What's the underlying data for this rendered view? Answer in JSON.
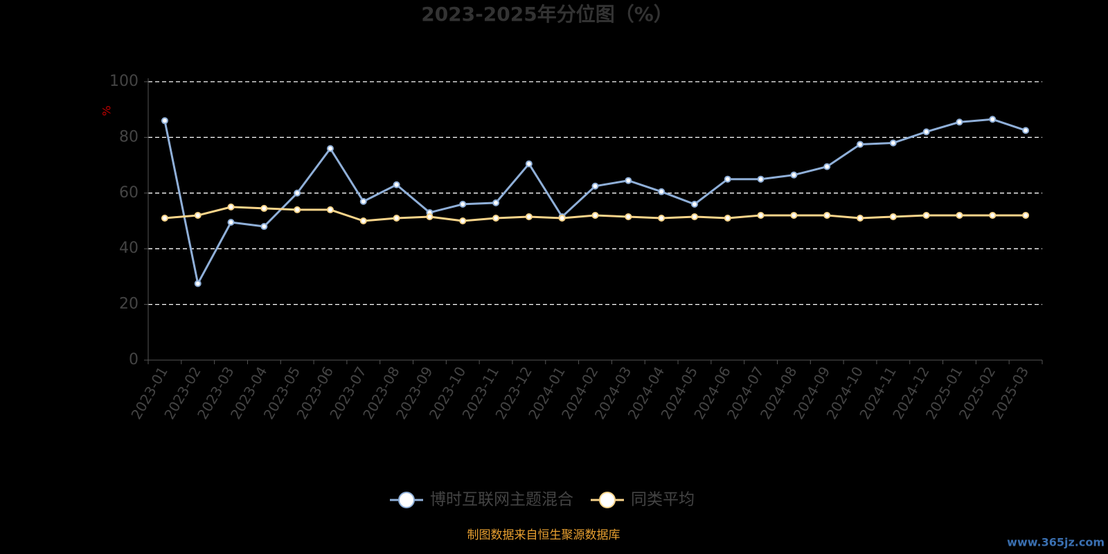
{
  "chart_data": {
    "type": "line",
    "title": "2023-2025年分位图（%）",
    "y_label": "%",
    "categories": [
      "2023-01",
      "2023-02",
      "2023-03",
      "2023-04",
      "2023-05",
      "2023-06",
      "2023-07",
      "2023-08",
      "2023-09",
      "2023-10",
      "2023-11",
      "2023-12",
      "2024-01",
      "2024-02",
      "2024-03",
      "2024-04",
      "2024-05",
      "2024-06",
      "2024-07",
      "2024-08",
      "2024-09",
      "2024-10",
      "2024-11",
      "2024-12",
      "2025-01",
      "2025-02",
      "2025-03"
    ],
    "series": [
      {
        "name": "博时互联网主题混合",
        "color": "#8fafd8",
        "values": [
          86,
          27.5,
          49.5,
          48,
          60,
          76,
          57,
          63,
          53,
          56,
          56.5,
          70.5,
          51.5,
          62.5,
          64.5,
          60.5,
          56,
          65,
          65,
          66.5,
          69.5,
          77.5,
          78,
          82,
          85.5,
          86.5,
          82.5
        ]
      },
      {
        "name": "同类平均",
        "color": "#f8d48a",
        "values": [
          51,
          52,
          55,
          54.5,
          54,
          54,
          50,
          51,
          51.5,
          50,
          51,
          51.5,
          51,
          52,
          51.5,
          51,
          51.5,
          51,
          52,
          52,
          52,
          51,
          51.5,
          52,
          52,
          52,
          52
        ]
      }
    ],
    "ylim": [
      0,
      100
    ],
    "yticks": [
      0,
      20,
      40,
      60,
      80,
      100
    ],
    "grid": true,
    "source": "制图数据来自恒生聚源数据库",
    "watermark": "www.365jz.com"
  }
}
